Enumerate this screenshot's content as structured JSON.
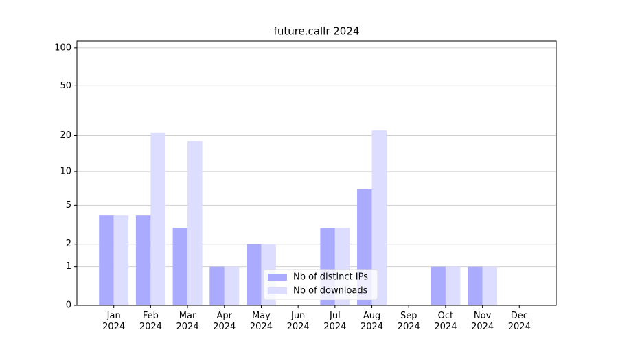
{
  "chart_data": {
    "type": "bar",
    "title": "future.callr 2024",
    "categories": [
      "Jan 2024",
      "Feb 2024",
      "Mar 2024",
      "Apr 2024",
      "May 2024",
      "Jun 2024",
      "Jul 2024",
      "Aug 2024",
      "Sep 2024",
      "Oct 2024",
      "Nov 2024",
      "Dec 2024"
    ],
    "series": [
      {
        "name": "Nb of distinct IPs",
        "color": "#aaaaff",
        "values": [
          4,
          4,
          3,
          1,
          2,
          0,
          3,
          7,
          0,
          1,
          1,
          0
        ]
      },
      {
        "name": "Nb of downloads",
        "color": "#ddddff",
        "values": [
          4,
          21,
          18,
          1,
          2,
          0,
          3,
          22,
          0,
          1,
          1,
          0
        ]
      }
    ],
    "yscale": "log1p",
    "ylim": [
      0,
      113
    ],
    "yticks": [
      0,
      1,
      2,
      5,
      10,
      20,
      50,
      100
    ],
    "grid": true,
    "legend": "lower center"
  }
}
